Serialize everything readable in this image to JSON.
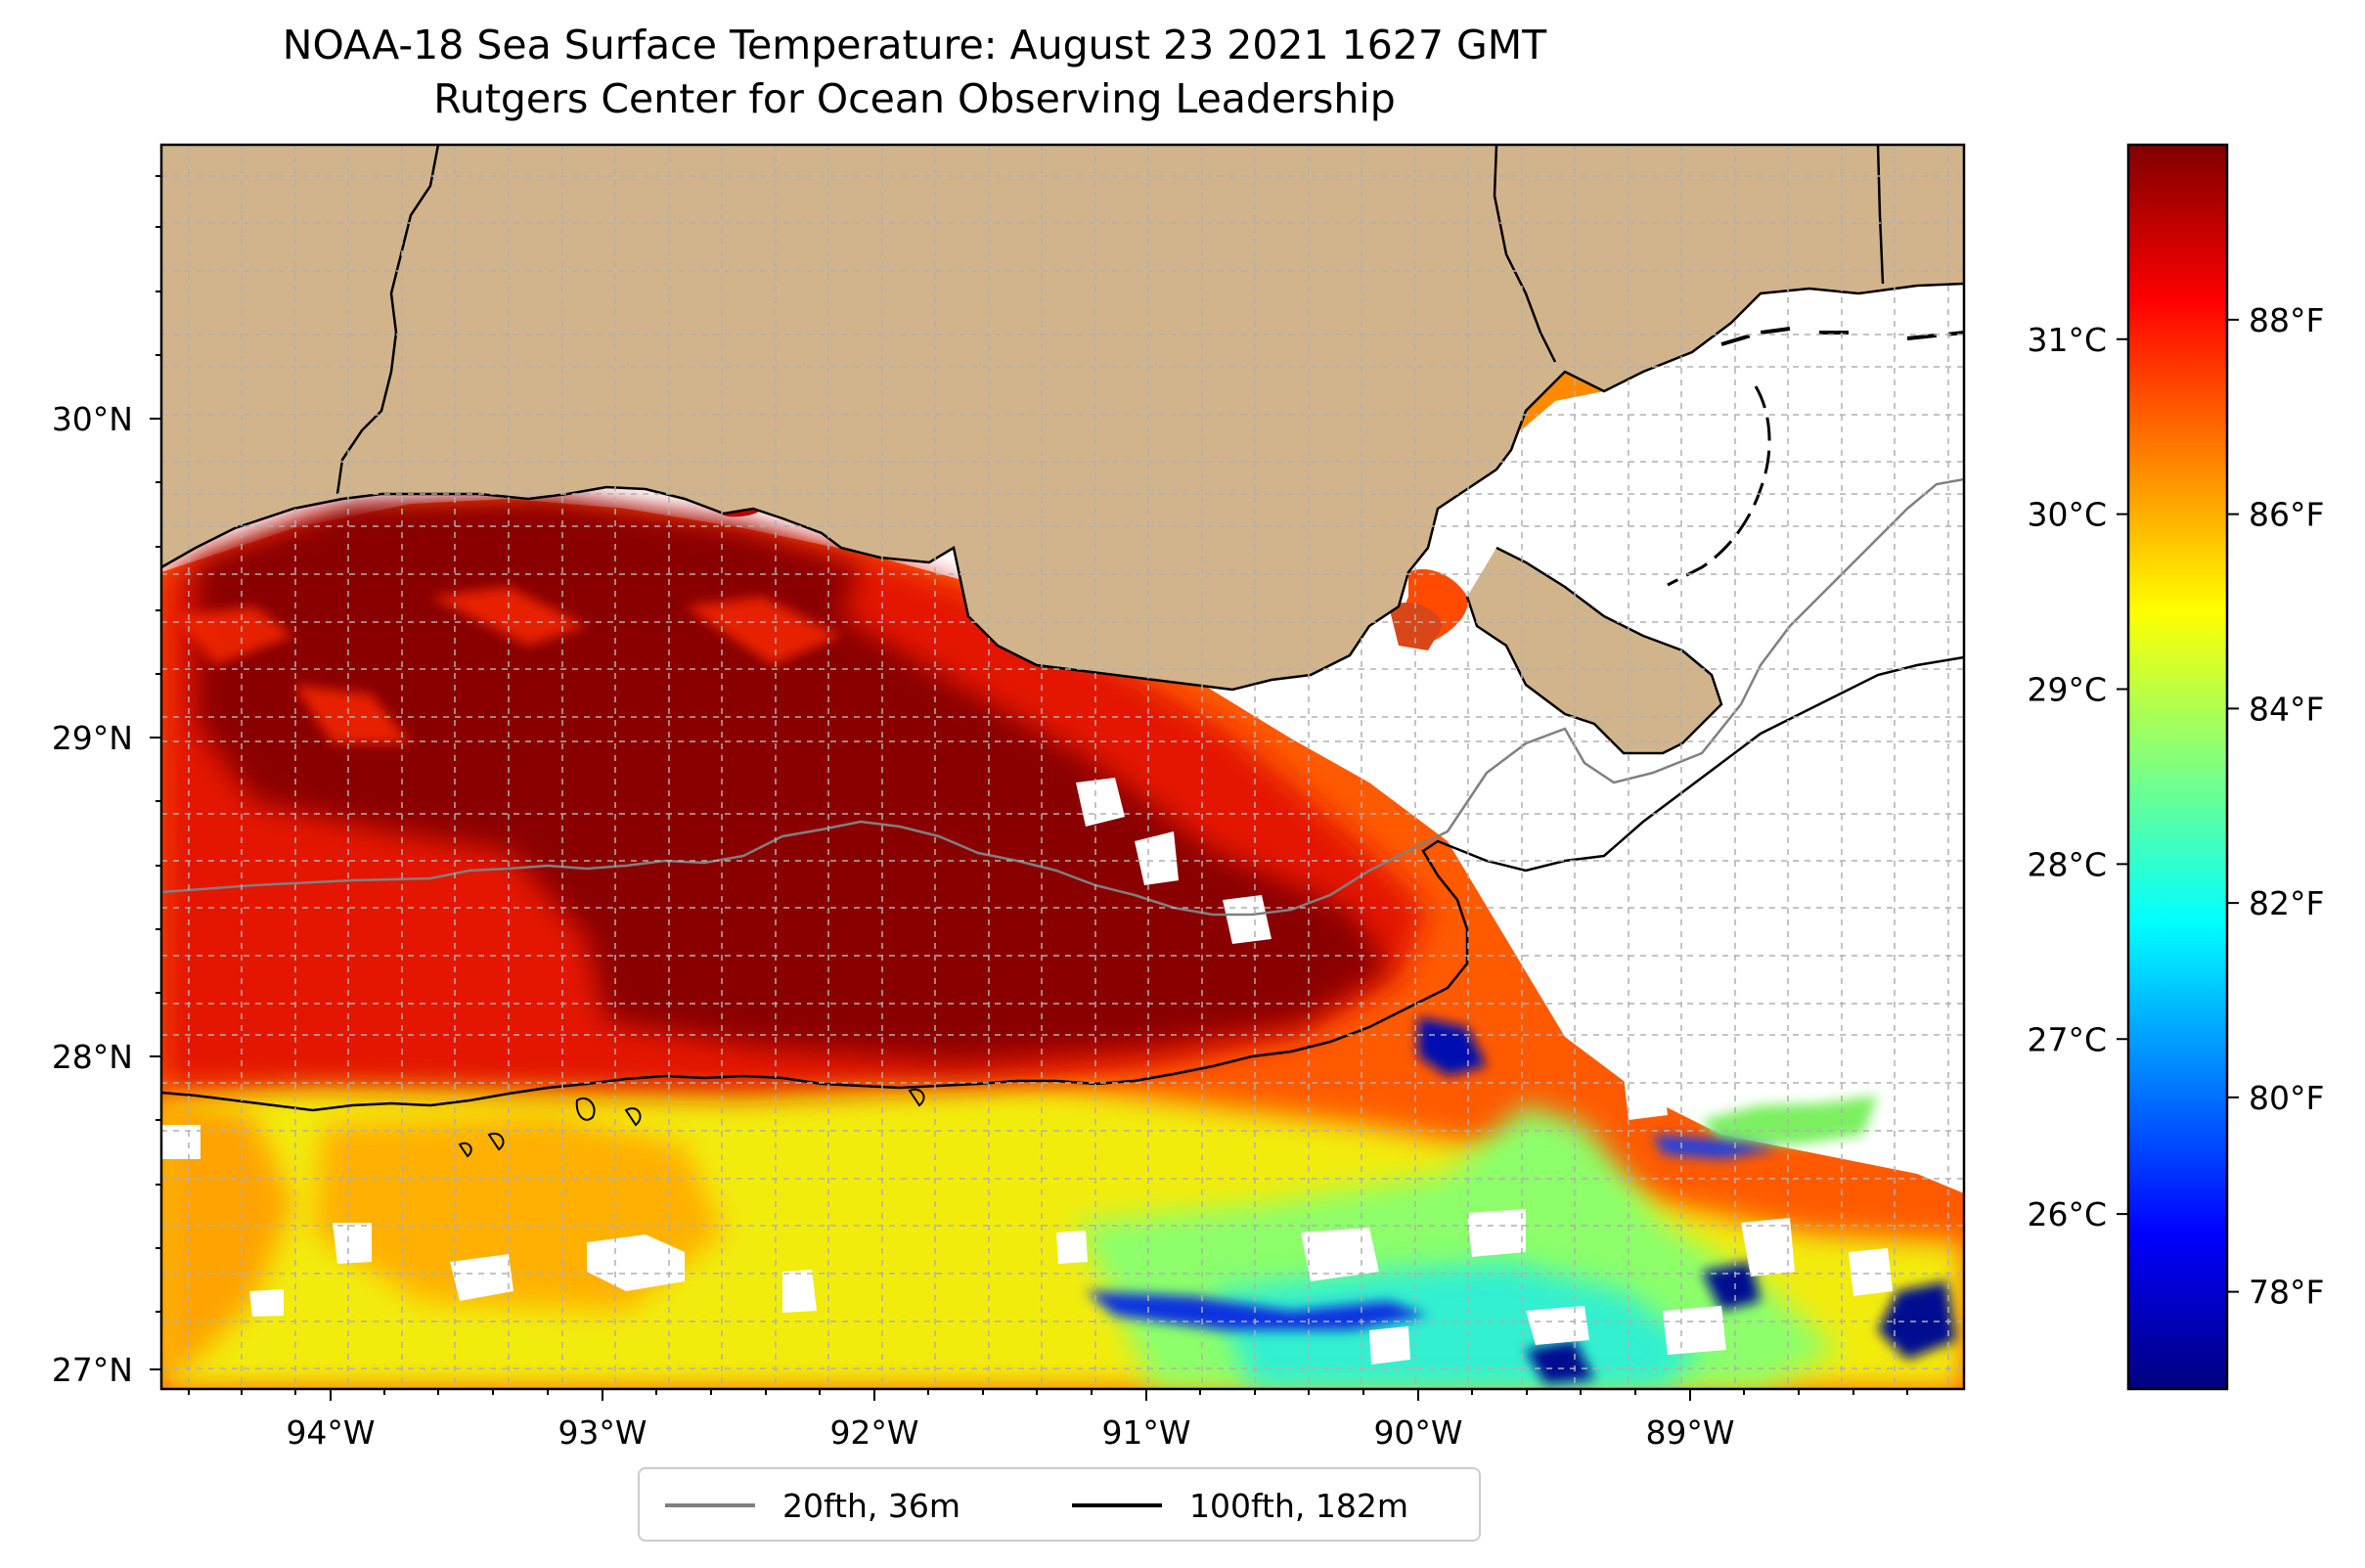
{
  "title_line1": "NOAA-18 Sea Surface Temperature: August 23 2021 1627 GMT",
  "title_line2": "Rutgers Center for Ocean Observing Leadership",
  "chart_data": {
    "type": "heatmap",
    "x_ticks": [
      "94°W",
      "93°W",
      "92°W",
      "91°W",
      "90°W",
      "89°W"
    ],
    "y_ticks": [
      "30°N",
      "29°N",
      "28°N",
      "27°N"
    ],
    "xlim": [
      "94.6°W",
      "88.2°W"
    ],
    "ylim": [
      "26.95°N",
      "30.85°N"
    ],
    "grid": true,
    "colorbar": {
      "colormap": "jet",
      "range_F": [
        77.0,
        89.8
      ],
      "fahrenheit_ticks": [
        "78°F",
        "80°F",
        "82°F",
        "84°F",
        "86°F",
        "88°F"
      ],
      "celsius_ticks": [
        "26°C",
        "27°C",
        "28°C",
        "29°C",
        "30°C",
        "31°C"
      ]
    },
    "colors": {
      "land": "#d2b48c",
      "no_data": "#ffffff",
      "isobath_20fth": "#808080",
      "isobath_100fth": "#000000"
    },
    "legend": [
      {
        "label": "20fth, 36m",
        "color": "#808080"
      },
      {
        "label": "100fth, 182m",
        "color": "#000000"
      }
    ]
  }
}
